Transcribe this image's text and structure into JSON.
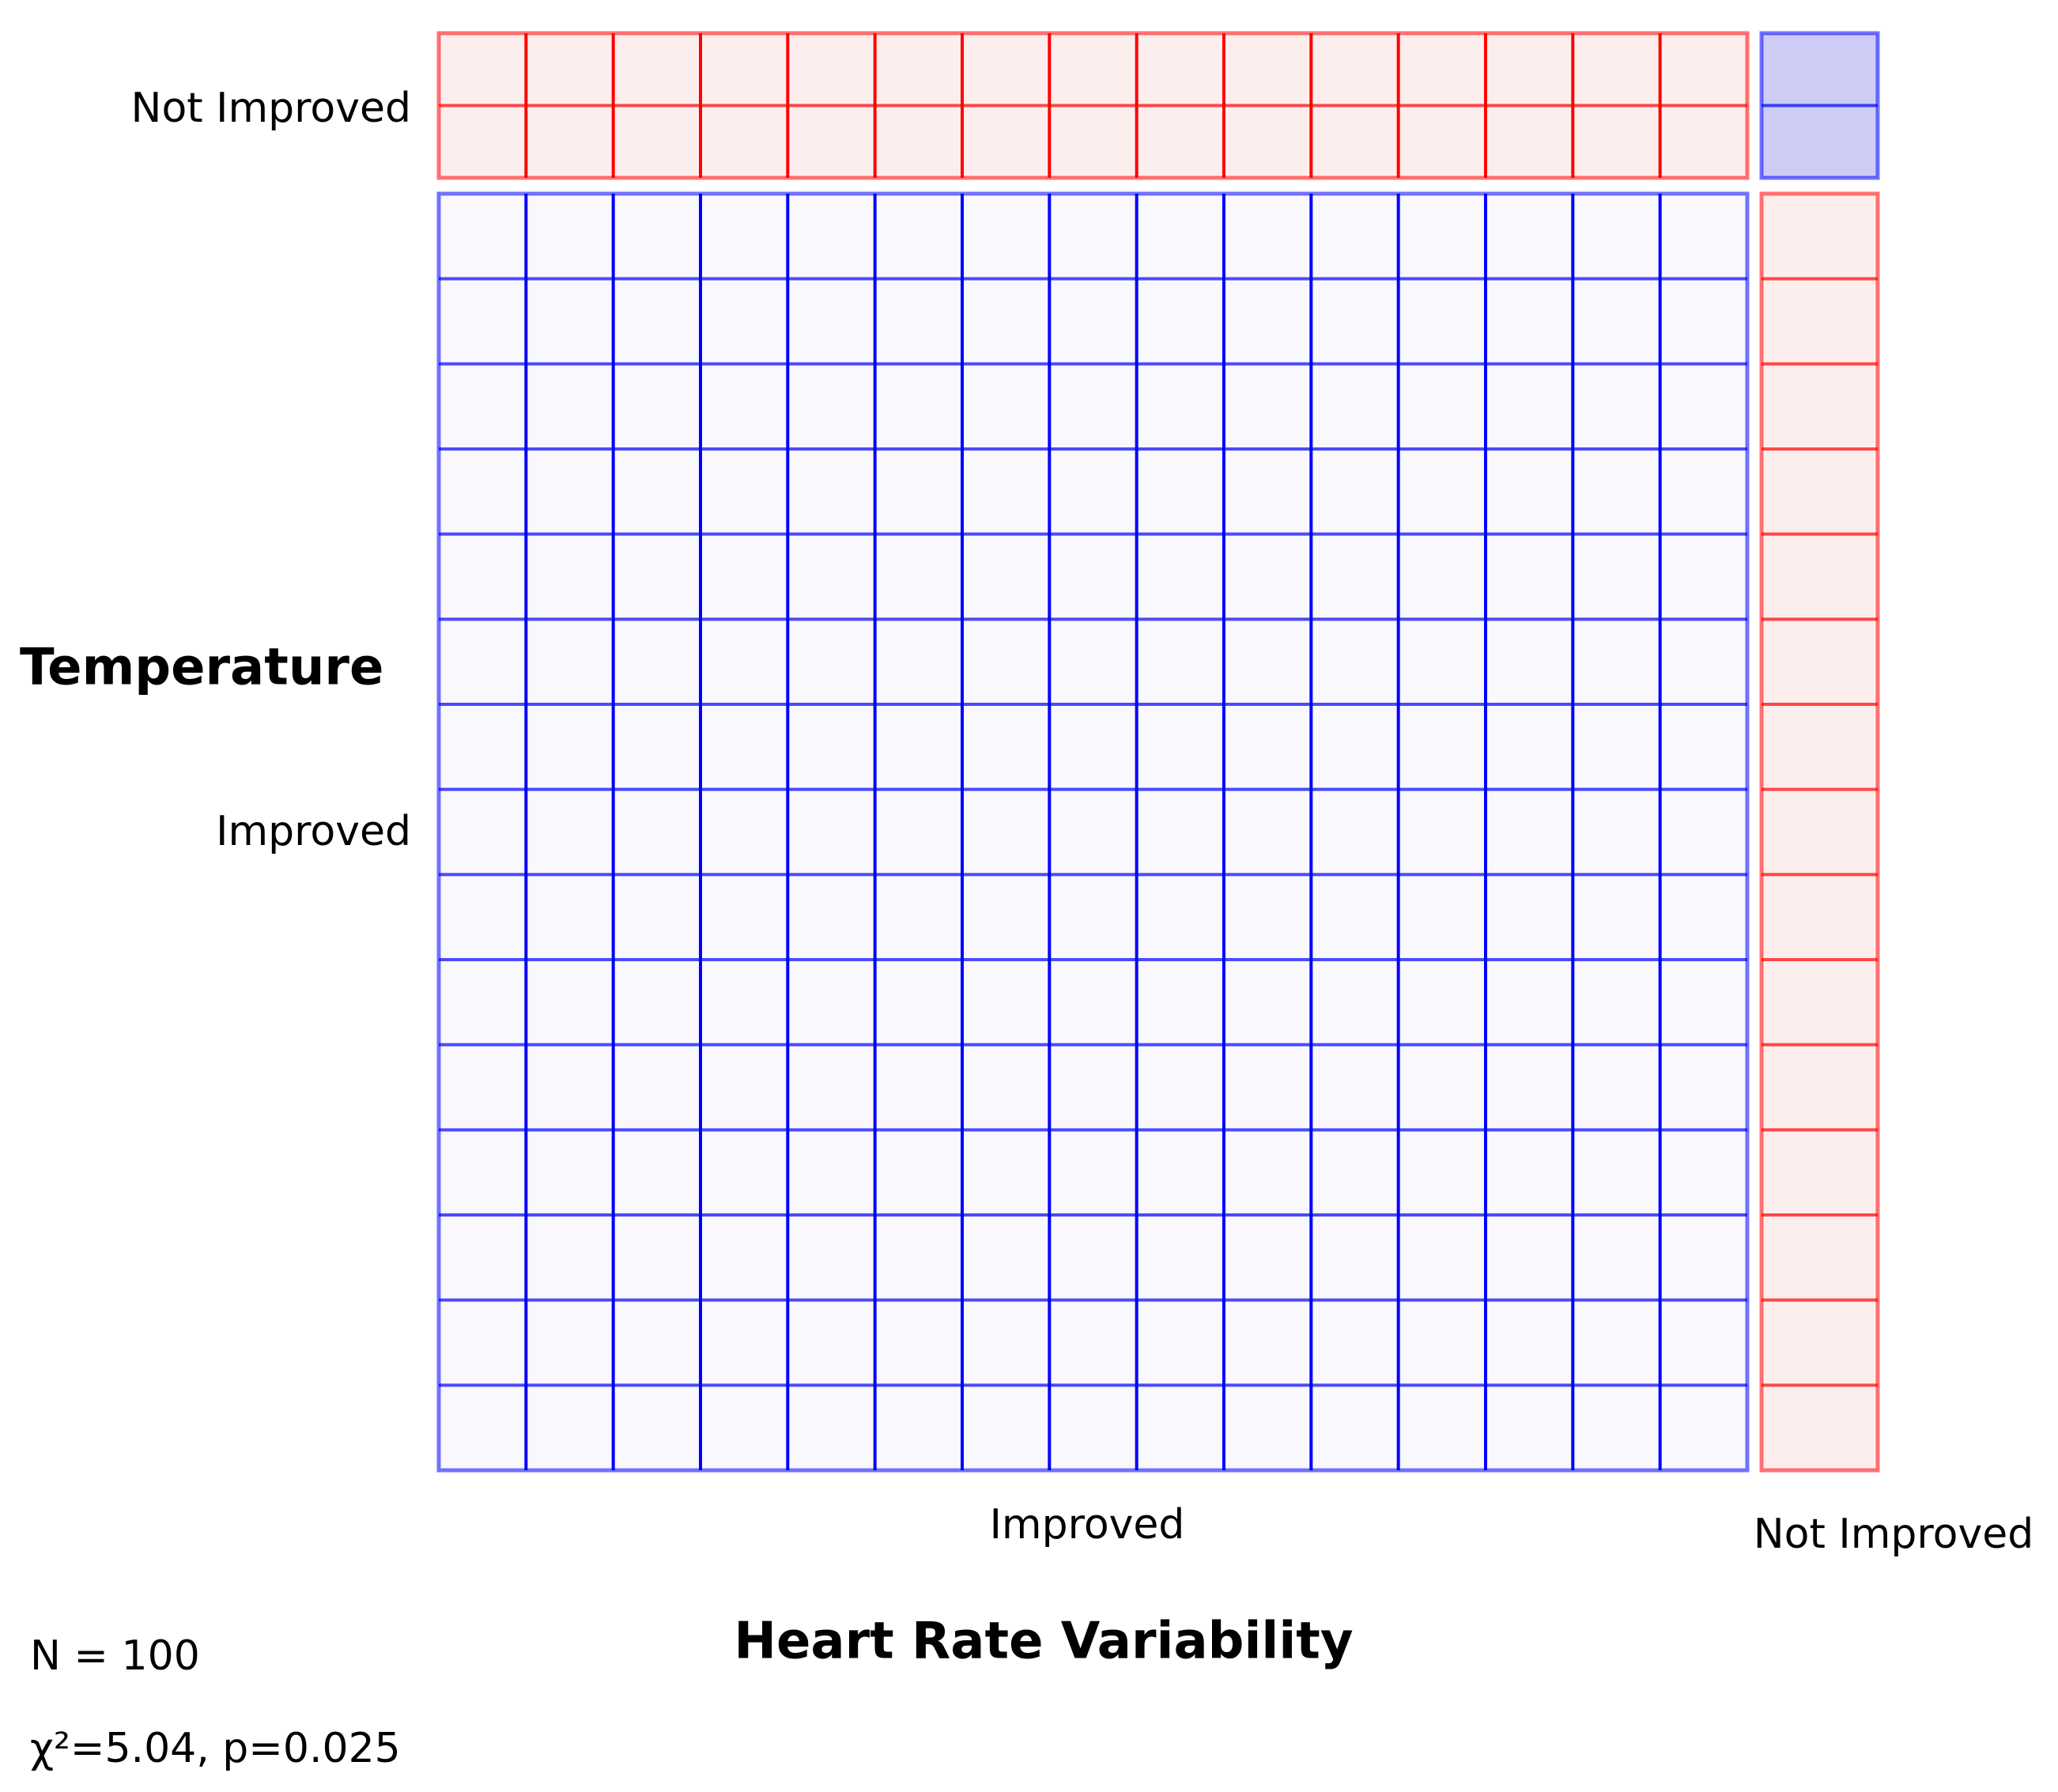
{
  "chart_data": {
    "type": "mosaic",
    "x_variable": "Heart Rate Variability",
    "y_variable": "Temperature",
    "x_categories": [
      "Improved",
      "Not Improved"
    ],
    "y_categories": [
      "Not Improved",
      "Improved"
    ],
    "cells": [
      {
        "temperature": "Not Improved",
        "heart_rate_variability": "Improved",
        "count": 12,
        "residual_sign": "positive"
      },
      {
        "temperature": "Not Improved",
        "heart_rate_variability": "Not Improved",
        "count": 0,
        "residual_sign": "negative"
      },
      {
        "temperature": "Improved",
        "heart_rate_variability": "Improved",
        "count": 78,
        "residual_sign": "negative"
      },
      {
        "temperature": "Improved",
        "heart_rate_variability": "Not Improved",
        "count": 10,
        "residual_sign": "positive"
      }
    ],
    "n_text": "N = 100",
    "stat_text": "χ²=5.04, p=0.025",
    "colors": {
      "positive_stroke": "#ff0000",
      "positive_fill": "#fdeeee",
      "negative_stroke": "#0000ff",
      "negative_fill_light": "#f8f8fd",
      "negative_fill_medium": "#ccccf5"
    }
  }
}
